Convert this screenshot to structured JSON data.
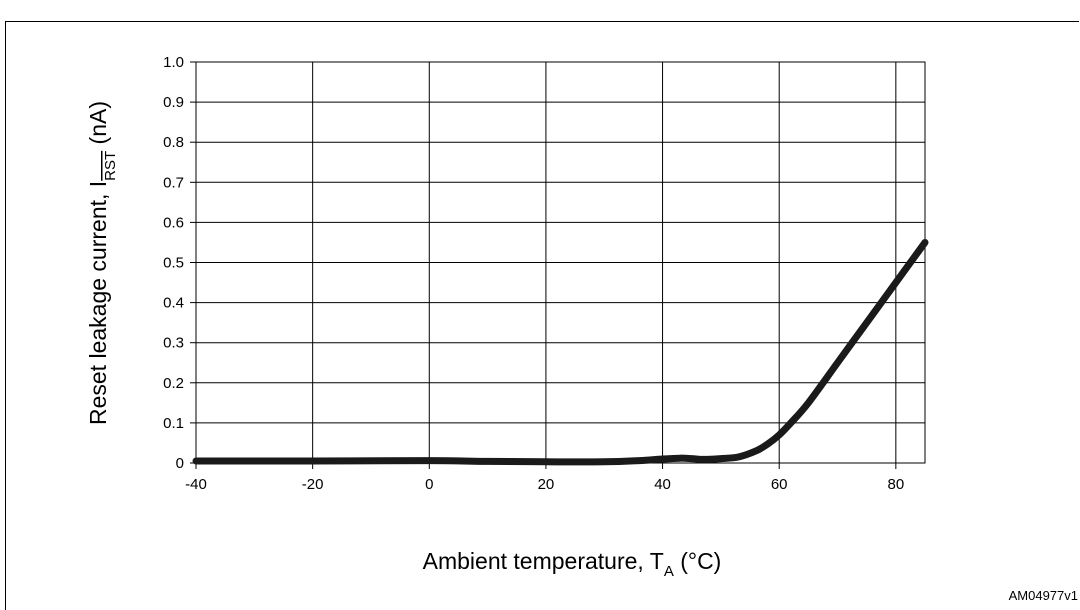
{
  "chart_data": {
    "type": "line",
    "title": "",
    "xlabel": {
      "main": "Ambient temperature, T",
      "sub": "A",
      "suffix": " (°C)"
    },
    "ylabel": {
      "main": "Reset leakage current, I",
      "sub": "RST",
      "suffix": " (nA)",
      "sub_overline": true
    },
    "xlim": [
      -40,
      85
    ],
    "ylim": [
      0,
      1.0
    ],
    "x_ticks": [
      -40,
      -20,
      0,
      20,
      40,
      60,
      80
    ],
    "x_tick_labels": [
      "-40",
      "-20",
      "0",
      "20",
      "40",
      "60",
      "80"
    ],
    "y_ticks": [
      0,
      0.1,
      0.2,
      0.3,
      0.4,
      0.5,
      0.6,
      0.7,
      0.8,
      0.9,
      1.0
    ],
    "y_tick_labels": [
      "0",
      "0.1",
      "0.2",
      "0.3",
      "0.4",
      "0.5",
      "0.6",
      "0.7",
      "0.8",
      "0.9",
      "1.0"
    ],
    "grid": true,
    "legend": "none",
    "series": [
      {
        "color": "#1a1a1a",
        "x": [
          -40,
          -20,
          0,
          10,
          20,
          30,
          36,
          40,
          43,
          45,
          47,
          50,
          53,
          56,
          58,
          60,
          62,
          65,
          70,
          75,
          80,
          85
        ],
        "y": [
          0.005,
          0.005,
          0.006,
          0.004,
          0.003,
          0.003,
          0.006,
          0.01,
          0.012,
          0.011,
          0.009,
          0.011,
          0.015,
          0.03,
          0.047,
          0.07,
          0.1,
          0.15,
          0.25,
          0.35,
          0.45,
          0.55
        ]
      }
    ]
  },
  "figure_code": "AM04977v1"
}
